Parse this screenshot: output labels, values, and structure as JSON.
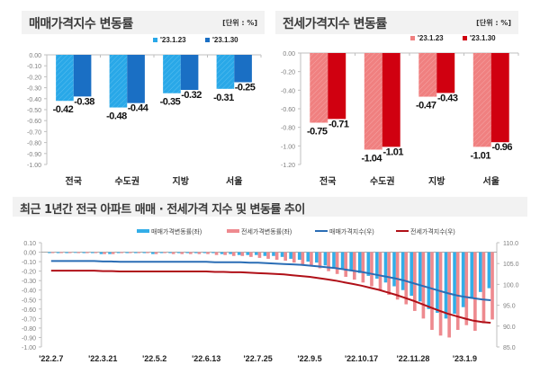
{
  "sections": {
    "sale_title": "매매가격지수 변동률",
    "sale_unit": "[단위 : %]",
    "jeonse_title": "전세가격지수 변동률",
    "jeonse_unit": "[단위 : %]",
    "trend_title": "최근 1년간 전국 아파트 매매 · 전세가격 지수 및 변동률 추이"
  },
  "colors": {
    "sale_prev": "#29a8e8",
    "sale_curr": "#1a6fc4",
    "jeonse_prev": "#f08080",
    "jeonse_curr": "#d00010",
    "trend_sale_bar": "#33aee8",
    "trend_jeonse_bar": "#ee8a8f",
    "trend_sale_line": "#2a6db5",
    "trend_jeonse_line": "#b01018"
  },
  "chart_data": [
    {
      "type": "bar",
      "title": "매매가격지수 변동률",
      "unit": "[단위 : %]",
      "categories": [
        "전국",
        "수도권",
        "지방",
        "서울"
      ],
      "series": [
        {
          "name": "'23.1.23",
          "values": [
            -0.42,
            -0.48,
            -0.35,
            -0.31
          ]
        },
        {
          "name": "'23.1.30",
          "values": [
            -0.38,
            -0.44,
            -0.32,
            -0.25
          ]
        }
      ],
      "ylim": [
        -1.0,
        0.0
      ],
      "yticks": [
        "0.00",
        "-0.10",
        "-0.20",
        "-0.30",
        "-0.40",
        "-0.50",
        "-0.60",
        "-0.70",
        "-0.80",
        "-0.90",
        "-1.00"
      ],
      "data_labels": [
        [
          "-0.42",
          "-0.48",
          "-0.35",
          "-0.31"
        ],
        [
          "-0.38",
          "-0.44",
          "-0.32",
          "-0.25"
        ]
      ],
      "legend": "top-right"
    },
    {
      "type": "bar",
      "title": "전세가격지수 변동률",
      "unit": "[단위 : %]",
      "categories": [
        "전국",
        "수도권",
        "지방",
        "서울"
      ],
      "series": [
        {
          "name": "'23.1.23",
          "values": [
            -0.75,
            -1.04,
            -0.47,
            -1.01
          ]
        },
        {
          "name": "'23.1.30",
          "values": [
            -0.71,
            -1.01,
            -0.43,
            -0.96
          ]
        }
      ],
      "ylim": [
        -1.2,
        0.0
      ],
      "yticks": [
        "0.00",
        "-0.20",
        "-0.40",
        "-0.60",
        "-0.80",
        "-1.00",
        "-1.20"
      ],
      "data_labels": [
        [
          "-0.75",
          "-1.04",
          "-0.47",
          "-1.01"
        ],
        [
          "-0.71",
          "-1.01",
          "-0.43",
          "-0.96"
        ]
      ],
      "legend": "top-right"
    },
    {
      "type": "bar+line",
      "title": "최근 1년간 전국 아파트 매매 · 전세가격 지수 및 변동률 추이",
      "x_tick_labels": [
        "'22.2.7",
        "'22.3.21",
        "'22.5.2",
        "'22.6.13",
        "'22.7.25",
        "'22.9.5",
        "'22.10.17",
        "'22.11.28",
        "'23.1.9"
      ],
      "ylim_left": [
        -1.0,
        0.1
      ],
      "yticks_left": [
        "0.10",
        "0.00",
        "-0.10",
        "-0.20",
        "-0.30",
        "-0.40",
        "-0.50",
        "-0.60",
        "-0.70",
        "-0.80",
        "-0.90",
        "-1.00"
      ],
      "ylim_right": [
        85.0,
        110.0
      ],
      "yticks_right": [
        "110.0",
        "105.0",
        "100.0",
        "95.0",
        "90.0",
        "85.0"
      ],
      "legend": "top-right",
      "series": [
        {
          "name": "매매가격변동률(좌)",
          "kind": "bar",
          "axis": "left",
          "values": [
            -0.01,
            -0.01,
            -0.01,
            0.0,
            -0.01,
            -0.01,
            -0.02,
            -0.02,
            -0.01,
            -0.01,
            -0.01,
            -0.01,
            -0.02,
            -0.01,
            -0.01,
            -0.01,
            -0.01,
            -0.01,
            -0.01,
            -0.01,
            -0.02,
            -0.02,
            -0.03,
            -0.03,
            -0.03,
            -0.04,
            -0.04,
            -0.05,
            -0.07,
            -0.08,
            -0.1,
            -0.11,
            -0.14,
            -0.16,
            -0.18,
            -0.2,
            -0.22,
            -0.25,
            -0.28,
            -0.32,
            -0.36,
            -0.4,
            -0.46,
            -0.52,
            -0.6,
            -0.64,
            -0.7,
            -0.65,
            -0.58,
            -0.49,
            -0.42,
            -0.38
          ]
        },
        {
          "name": "전세가격변동률(좌)",
          "kind": "bar",
          "axis": "left",
          "values": [
            -0.01,
            -0.01,
            -0.01,
            -0.01,
            -0.01,
            -0.01,
            -0.02,
            -0.02,
            -0.01,
            -0.01,
            -0.01,
            -0.01,
            -0.02,
            -0.01,
            -0.02,
            -0.02,
            -0.02,
            -0.02,
            -0.02,
            -0.03,
            -0.03,
            -0.04,
            -0.04,
            -0.05,
            -0.06,
            -0.07,
            -0.08,
            -0.09,
            -0.11,
            -0.13,
            -0.15,
            -0.17,
            -0.2,
            -0.23,
            -0.26,
            -0.29,
            -0.32,
            -0.36,
            -0.4,
            -0.45,
            -0.5,
            -0.55,
            -0.62,
            -0.7,
            -0.82,
            -0.88,
            -0.9,
            -0.82,
            -0.77,
            -0.83,
            -0.75,
            -0.71
          ]
        },
        {
          "name": "매매가격지수(우)",
          "kind": "line",
          "axis": "right",
          "values": [
            105.6,
            105.6,
            105.6,
            105.6,
            105.6,
            105.6,
            105.5,
            105.5,
            105.4,
            105.4,
            105.4,
            105.4,
            105.4,
            105.4,
            105.4,
            105.4,
            105.4,
            105.4,
            105.4,
            105.3,
            105.3,
            105.3,
            105.3,
            105.2,
            105.2,
            105.1,
            105.0,
            104.9,
            104.8,
            104.7,
            104.5,
            104.3,
            104.1,
            103.9,
            103.6,
            103.3,
            103.0,
            102.6,
            102.2,
            101.8,
            101.4,
            100.9,
            100.3,
            99.7,
            99.1,
            98.5,
            97.9,
            97.4,
            97.0,
            96.7,
            96.4,
            96.2
          ]
        },
        {
          "name": "전세가격지수(우)",
          "kind": "line",
          "axis": "right",
          "values": [
            103.3,
            103.3,
            103.3,
            103.3,
            103.3,
            103.3,
            103.2,
            103.2,
            103.1,
            103.1,
            103.1,
            103.1,
            103.1,
            103.1,
            103.1,
            103.1,
            103.1,
            103.1,
            103.1,
            103.0,
            103.0,
            102.9,
            102.9,
            102.8,
            102.7,
            102.6,
            102.5,
            102.4,
            102.2,
            102.0,
            101.8,
            101.5,
            101.2,
            100.9,
            100.5,
            100.1,
            99.7,
            99.2,
            98.7,
            98.1,
            97.5,
            96.8,
            96.1,
            95.3,
            94.5,
            93.7,
            93.0,
            92.4,
            91.8,
            91.3,
            91.0,
            90.8
          ]
        }
      ]
    }
  ]
}
